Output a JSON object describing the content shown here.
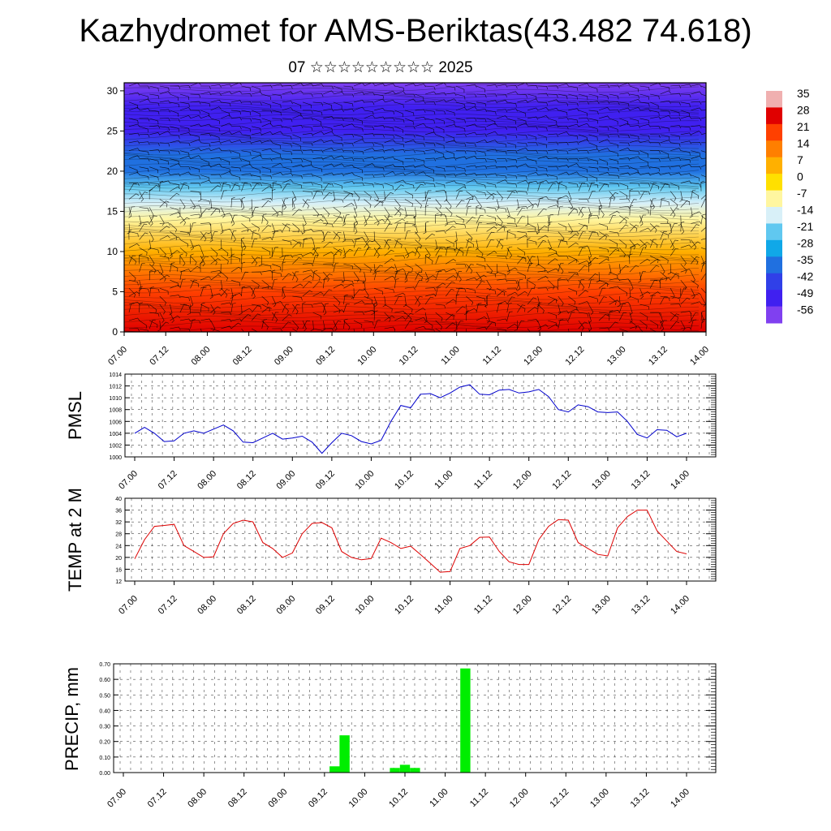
{
  "page": {
    "title": "Kazhydromet for AMS-Beriktas(43.482 74.618)",
    "subtitle": "07 ☆☆☆☆☆☆☆☆☆ 2025"
  },
  "chart_data": [
    {
      "type": "heatmap",
      "title": "",
      "ylabel": "",
      "yticks": [
        0,
        5,
        10,
        15,
        20,
        25,
        30
      ],
      "ylim": [
        0,
        31
      ],
      "x_tick_labels": [
        "07.00",
        "07.12",
        "08.00",
        "08.12",
        "09.00",
        "09.12",
        "10.00",
        "10.12",
        "11.00",
        "11.12",
        "12.00",
        "12.12",
        "13.00",
        "13.12",
        "14.00"
      ],
      "colorbar_labels": [
        "35",
        "28",
        "21",
        "14",
        "7",
        "0",
        "-7",
        "-14",
        "-21",
        "-28",
        "-35",
        "-42",
        "-49",
        "-56"
      ],
      "colorbar_colors": [
        "#f0b0b0",
        "#e00000",
        "#ff4000",
        "#ff7f00",
        "#ffb000",
        "#ffe000",
        "#fff6a0",
        "#d8f0f8",
        "#60c8f0",
        "#10a8e8",
        "#2070e0",
        "#3040e8",
        "#4020f0",
        "#8040f0"
      ],
      "profile_levels": [
        {
          "level": 0,
          "value": 30
        },
        {
          "level": 5,
          "value": 20
        },
        {
          "level": 10,
          "value": 8
        },
        {
          "level": 14,
          "value": -6
        },
        {
          "level": 16,
          "value": -12
        },
        {
          "level": 18,
          "value": -22
        },
        {
          "level": 20,
          "value": -32
        },
        {
          "level": 22,
          "value": -38
        },
        {
          "level": 25,
          "value": -46
        },
        {
          "level": 28,
          "value": -50
        },
        {
          "level": 31,
          "value": -54
        }
      ],
      "wind_barbs": true
    },
    {
      "type": "line",
      "ylabel": "PMSL",
      "color": "#0000cc",
      "ylim": [
        1000,
        1014
      ],
      "yticks": [
        1000,
        1002,
        1004,
        1006,
        1008,
        1010,
        1012,
        1014
      ],
      "x_tick_labels": [
        "07.00",
        "07.12",
        "08.00",
        "08.12",
        "09.00",
        "09.12",
        "10.00",
        "10.12",
        "11.00",
        "11.12",
        "12.00",
        "12.12",
        "13.00",
        "13.12",
        "14.00"
      ],
      "grid": true,
      "values": [
        1004.0,
        1005.0,
        1004.0,
        1002.6,
        1002.7,
        1004.0,
        1004.4,
        1004.0,
        1004.7,
        1005.4,
        1004.4,
        1002.5,
        1002.4,
        1003.2,
        1004.0,
        1003.0,
        1003.2,
        1003.5,
        1002.5,
        1000.6,
        1002.4,
        1004.0,
        1003.6,
        1002.6,
        1002.2,
        1002.8,
        1006.0,
        1008.7,
        1008.3,
        1010.6,
        1010.7,
        1010.0,
        1010.8,
        1011.8,
        1012.2,
        1010.6,
        1010.5,
        1011.3,
        1011.4,
        1010.8,
        1011.0,
        1011.4,
        1010.2,
        1008.0,
        1007.6,
        1008.8,
        1008.5,
        1007.6,
        1007.5,
        1007.6,
        1006.0,
        1003.8,
        1003.2,
        1004.6,
        1004.5,
        1003.4,
        1004.0
      ]
    },
    {
      "type": "line",
      "ylabel": "TEMP at 2 M",
      "color": "#dd0000",
      "ylim": [
        12,
        40
      ],
      "yticks": [
        12,
        16,
        20,
        24,
        28,
        32,
        36,
        40
      ],
      "x_tick_labels": [
        "07.00",
        "07.12",
        "08.00",
        "08.12",
        "09.00",
        "09.12",
        "10.00",
        "10.12",
        "11.00",
        "11.12",
        "12.00",
        "12.12",
        "13.00",
        "13.12",
        "14.00"
      ],
      "grid": true,
      "values": [
        19.5,
        26.0,
        30.5,
        30.8,
        31.2,
        24.0,
        22.0,
        20.0,
        20.2,
        28.0,
        31.5,
        32.6,
        32.0,
        25.0,
        23.0,
        20.0,
        21.5,
        28.0,
        31.5,
        31.8,
        30.0,
        22.0,
        20.0,
        19.2,
        19.6,
        26.5,
        25.0,
        23.0,
        23.8,
        21.0,
        18.0,
        15.0,
        15.2,
        23.0,
        24.0,
        26.8,
        26.9,
        22.0,
        18.5,
        17.6,
        17.6,
        26.0,
        30.5,
        32.8,
        32.6,
        25.0,
        23.0,
        21.0,
        20.5,
        30.0,
        33.8,
        36.0,
        36.0,
        29.0,
        25.5,
        22.0,
        21.2
      ]
    },
    {
      "type": "bar",
      "ylabel": "PRECIP, mm",
      "color": "#00ee00",
      "ylim": [
        0,
        0.7
      ],
      "yticks": [
        "0.00",
        "0.10",
        "0.20",
        "0.30",
        "0.40",
        "0.50",
        "0.60",
        "0.70"
      ],
      "x_tick_labels": [
        "07.00",
        "07.12",
        "08.00",
        "08.12",
        "09.00",
        "09.12",
        "10.00",
        "10.12",
        "11.00",
        "11.12",
        "12.00",
        "12.12",
        "13.00",
        "13.12",
        "14.00"
      ],
      "grid": true,
      "values": [
        0,
        0,
        0,
        0,
        0,
        0,
        0,
        0,
        0,
        0,
        0,
        0,
        0,
        0,
        0,
        0,
        0,
        0,
        0,
        0,
        0,
        0.04,
        0.24,
        0,
        0,
        0,
        0,
        0.03,
        0.05,
        0.03,
        0,
        0,
        0,
        0,
        0.67,
        0,
        0,
        0,
        0,
        0,
        0,
        0,
        0,
        0,
        0,
        0,
        0,
        0,
        0,
        0,
        0,
        0,
        0,
        0,
        0,
        0,
        0
      ]
    }
  ]
}
